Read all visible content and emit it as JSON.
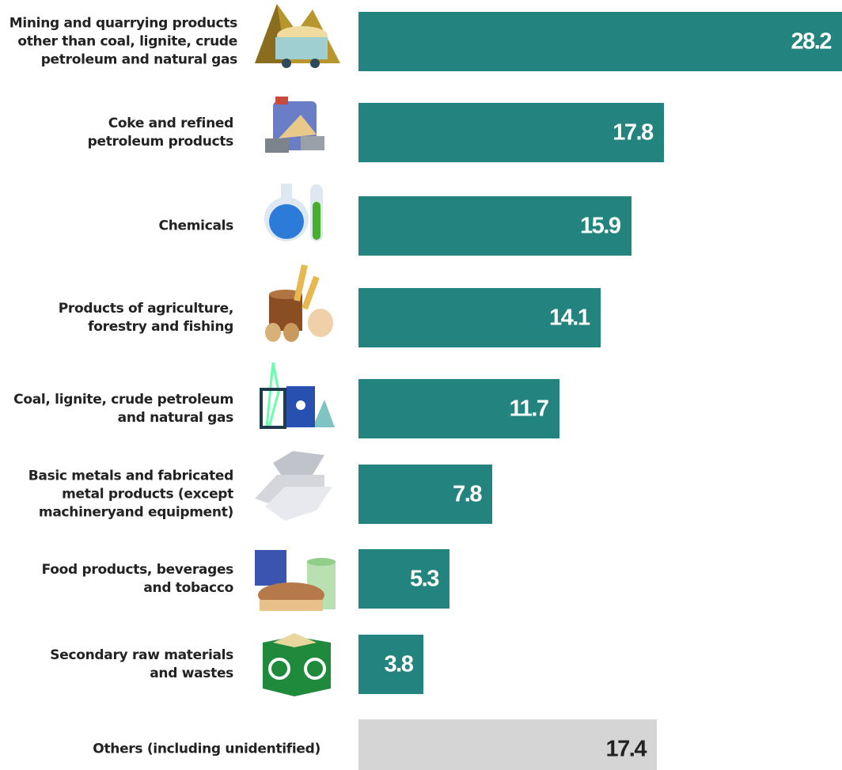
{
  "chart_data": {
    "type": "bar",
    "categories": [
      "Mining and quarrying products\nother than coal, lignite, crude\npetroleum and natural gas",
      "Coke and refined\npetroleum products",
      "Chemicals",
      "Products of agriculture,\nforestry and fishing",
      "Coal, lignite, crude petroleum\nand natural gas",
      "Basic metals and fabricated\nmetal products (except\nmachineryand equipment)",
      "Food products, beverages\nand tobacco",
      "Secondary raw materials\nand wastes",
      "Others (including unidentified)"
    ],
    "values": [
      28.2,
      17.8,
      15.9,
      14.1,
      11.7,
      7.8,
      5.3,
      3.8,
      17.4
    ],
    "colors": [
      "#23837f",
      "#23837f",
      "#23837f",
      "#23837f",
      "#23837f",
      "#23837f",
      "#23837f",
      "#23837f",
      "#d5d5d6"
    ]
  }
}
